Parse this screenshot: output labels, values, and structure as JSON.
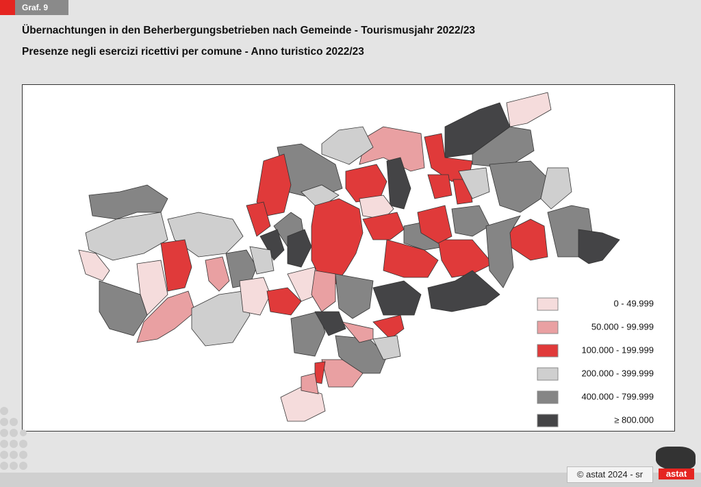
{
  "header": {
    "tag": "Graf. 9",
    "title": "Übernachtungen in den Beherbergungsbetrieben nach Gemeinde - Tourismusjahr 2022/23",
    "subtitle": "Presenze negli esercizi ricettivi per comune - Anno turistico 2022/23"
  },
  "legend": [
    {
      "label": "0 - 49.999",
      "color": "#f5dcdc"
    },
    {
      "label": "50.000 - 99.999",
      "color": "#e9a0a2"
    },
    {
      "label": "100.000 - 199.999",
      "color": "#e03a3a"
    },
    {
      "label": "200.000 - 399.999",
      "color": "#cfcfcf"
    },
    {
      "label": "400.000 - 799.999",
      "color": "#858585"
    },
    {
      "label": "≥ 800.000",
      "color": "#444446"
    }
  ],
  "footer": {
    "copyright": "© astat 2024 - sr",
    "logo": "astat"
  }
}
